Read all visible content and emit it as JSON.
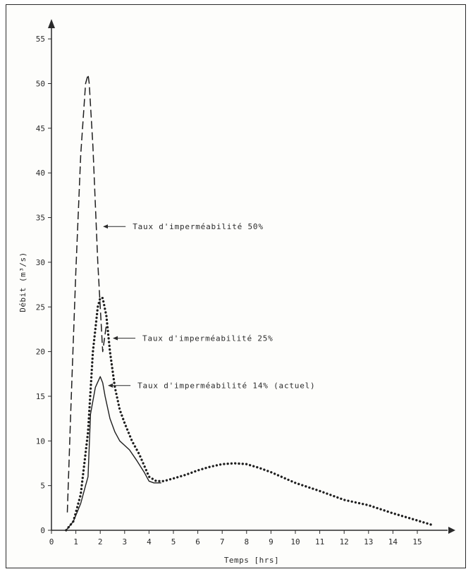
{
  "chart_data": {
    "type": "line",
    "title": "",
    "xlabel": "Temps [hrs]",
    "ylabel": "Débit (m³/s)",
    "xlim": [
      0,
      16
    ],
    "ylim": [
      0,
      57
    ],
    "x_ticks": [
      0,
      1,
      2,
      3,
      4,
      5,
      6,
      7,
      8,
      9,
      10,
      11,
      12,
      13,
      14,
      15
    ],
    "y_ticks": [
      0,
      5,
      10,
      15,
      20,
      25,
      30,
      35,
      40,
      45,
      50,
      55
    ],
    "grid": false,
    "legend": "none",
    "series": [
      {
        "style": "dashed",
        "x": [
          0.65,
          0.8,
          1.0,
          1.2,
          1.4,
          1.5,
          1.55,
          1.7,
          1.9,
          2.1,
          2.25
        ],
        "y": [
          2.0,
          14.0,
          29.0,
          42.0,
          50.0,
          51.0,
          50.0,
          43.0,
          30.0,
          20.0,
          23.0
        ]
      },
      {
        "style": "dotted",
        "x": [
          0.6,
          0.9,
          1.2,
          1.5,
          1.7,
          1.9,
          2.0,
          2.1,
          2.25,
          2.4,
          2.6,
          2.8,
          3.0,
          3.3,
          3.6,
          4.0,
          4.3,
          4.6,
          5.0,
          5.5,
          6.0,
          6.5,
          7.0,
          7.5,
          8.0,
          8.5,
          9.0,
          9.5,
          10.0,
          11.0,
          12.0,
          13.0,
          14.0,
          15.0,
          15.6
        ],
        "y": [
          0,
          1.0,
          4.0,
          11.0,
          20.0,
          25.0,
          26.0,
          26.0,
          24.0,
          20.0,
          16.0,
          13.5,
          12.0,
          10.0,
          8.5,
          6.0,
          5.5,
          5.5,
          5.8,
          6.2,
          6.7,
          7.1,
          7.4,
          7.5,
          7.4,
          7.0,
          6.5,
          5.9,
          5.3,
          4.4,
          3.4,
          2.8,
          1.9,
          1.1,
          0.6
        ]
      },
      {
        "style": "solid",
        "x": [
          0.6,
          0.9,
          1.2,
          1.4,
          1.5,
          1.6,
          1.8,
          2.0,
          2.1,
          2.2,
          2.4,
          2.6,
          2.8,
          3.0,
          3.2,
          3.5,
          3.8,
          4.0,
          4.2,
          4.5
        ],
        "y": [
          0,
          1.0,
          3.0,
          5.0,
          6.0,
          13.0,
          16.0,
          17.2,
          16.5,
          15.0,
          12.5,
          11.0,
          10.0,
          9.5,
          9.0,
          7.8,
          6.5,
          5.5,
          5.3,
          5.3
        ]
      }
    ],
    "annotations": [
      {
        "text": "Taux d'imperméabilité 50%",
        "x": 2.0,
        "y": 34.0
      },
      {
        "text": "Taux d'imperméabilité 25%",
        "x": 2.4,
        "y": 21.5
      },
      {
        "text": "Taux d'imperméabilité 14% (actuel)",
        "x": 2.2,
        "y": 16.2
      }
    ]
  }
}
